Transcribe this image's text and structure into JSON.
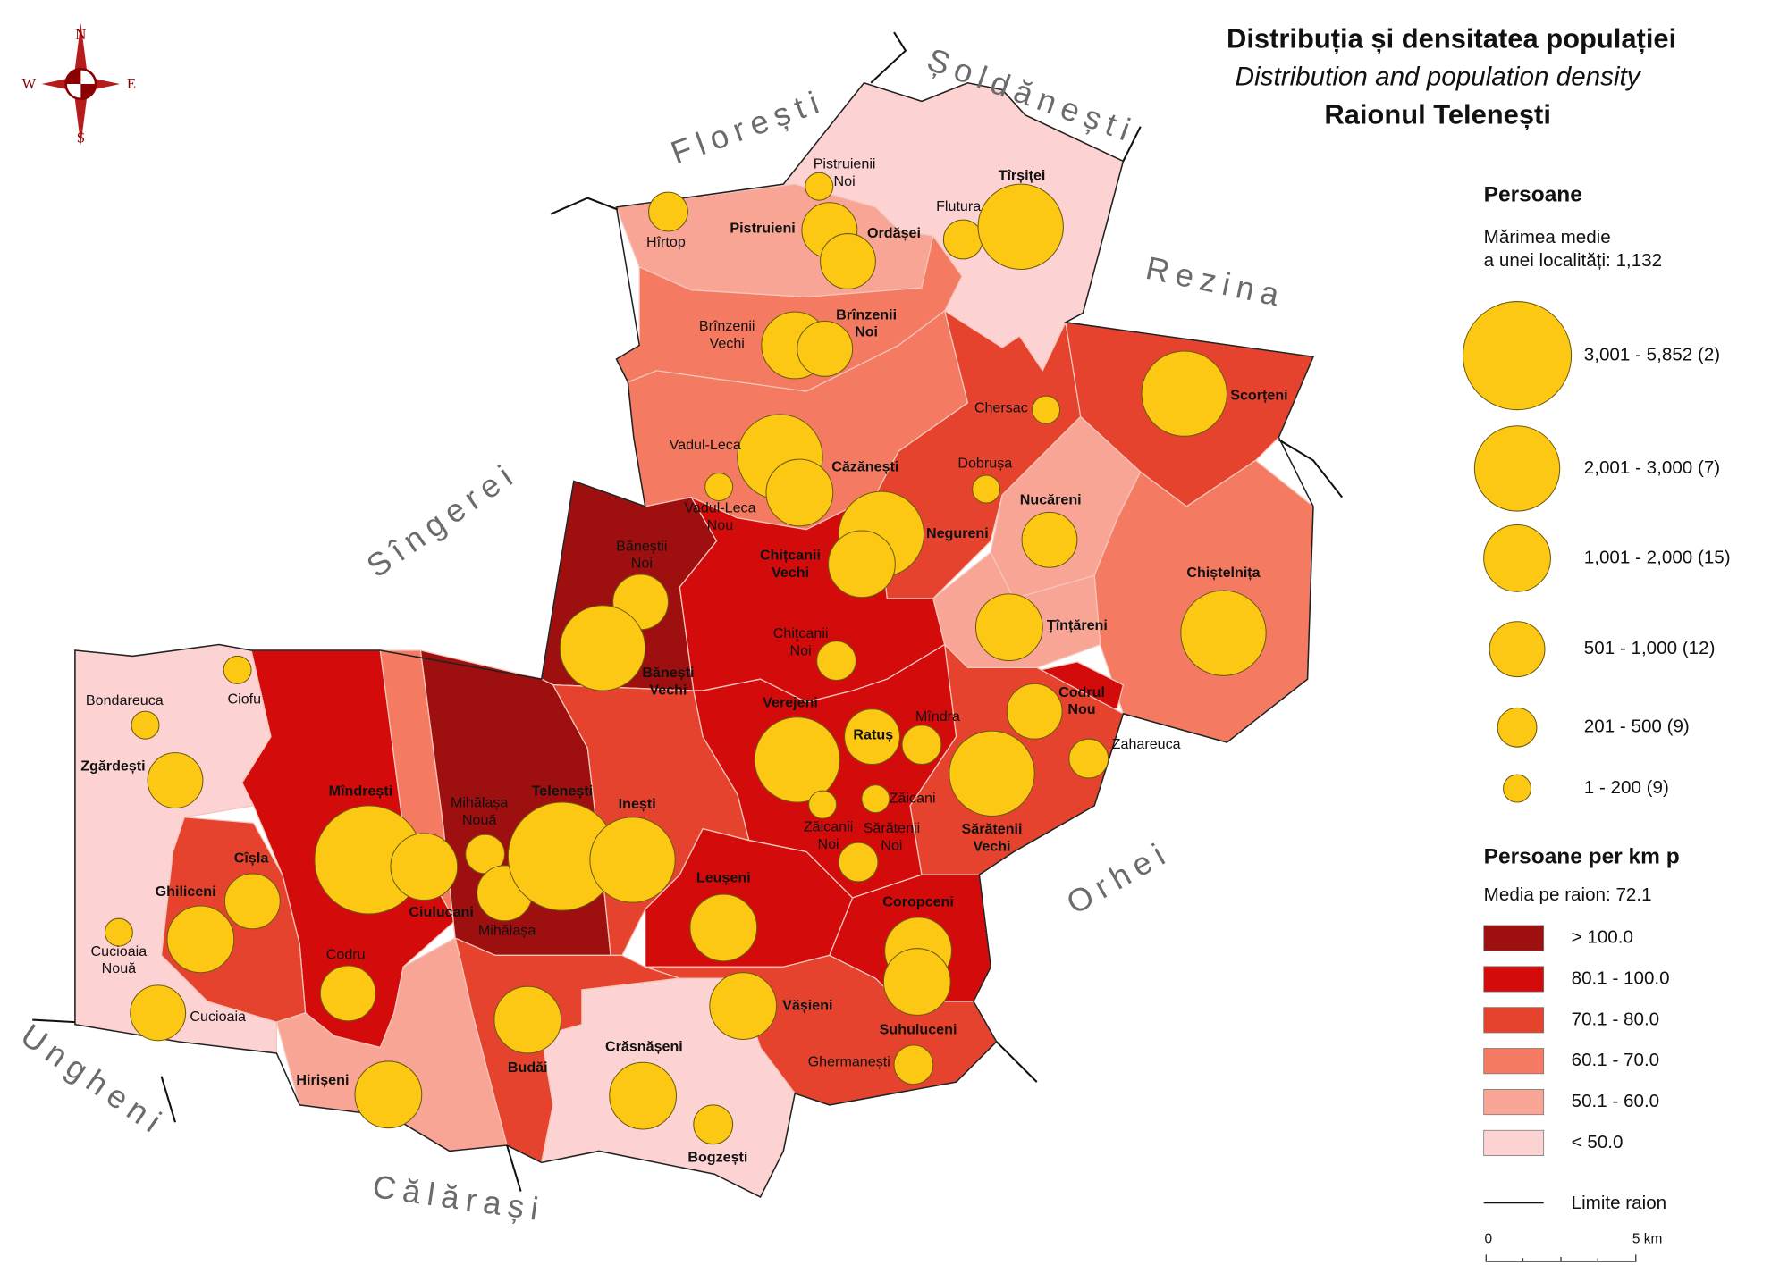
{
  "title": {
    "line1": "Distribuția și densitatea populației",
    "line2": "Distribution and population density",
    "line3": "Raionul Telenești"
  },
  "compass": {
    "n": "N",
    "e": "E",
    "s": "S",
    "w": "W"
  },
  "neighbors": [
    "Florești",
    "Șoldănești",
    "Rezina",
    "Sîngerei",
    "Orhei",
    "Ungheni",
    "Călărași"
  ],
  "localities": [
    [
      "Hîrtop"
    ],
    [
      "Pistruienii",
      "Noi"
    ],
    [
      "Pistruieni"
    ],
    [
      "Ordășei"
    ],
    [
      "Flutura"
    ],
    [
      "Tîrșiței"
    ],
    [
      "Brînzenii",
      "Vechi"
    ],
    [
      "Brînzenii",
      "Noi"
    ],
    [
      "Chersac"
    ],
    [
      "Scorțeni"
    ],
    [
      "Vadul-Leca"
    ],
    [
      "Căzănești"
    ],
    [
      "Vadul-Leca",
      "Nou"
    ],
    [
      "Dobrușa"
    ],
    [
      "Nucăreni"
    ],
    [
      "Negureni"
    ],
    [
      "Chițcanii",
      "Vechi"
    ],
    [
      "Chiștelnița"
    ],
    [
      "Băneștii",
      "Noi"
    ],
    [
      "Bănești",
      "Vechi"
    ],
    [
      "Chițcanii",
      "Noi"
    ],
    [
      "Țînțăreni"
    ],
    [
      "Ciofu"
    ],
    [
      "Bondareuca"
    ],
    [
      "Codrul",
      "Nou"
    ],
    [
      "Zgărdești"
    ],
    [
      "Verejeni"
    ],
    [
      "Ratuș"
    ],
    [
      "Mîndra"
    ],
    [
      "Zahareuca"
    ],
    [
      "Sărătenii",
      "Vechi"
    ],
    [
      "Zăicani"
    ],
    [
      "Zăicanii",
      "Noi"
    ],
    [
      "Sărătenii",
      "Noi"
    ],
    [
      "Mîndrești"
    ],
    [
      "Ciulucani"
    ],
    [
      "Mihălașa",
      "Nouă"
    ],
    [
      "Mihălașa"
    ],
    [
      "Telenești"
    ],
    [
      "Inești"
    ],
    [
      "Cîșla"
    ],
    [
      "Ghiliceni"
    ],
    [
      "Cucioaia",
      "Nouă"
    ],
    [
      "Cucioaia"
    ],
    [
      "Leușeni"
    ],
    [
      "Coropceni"
    ],
    [
      "Codru"
    ],
    [
      "Vășieni"
    ],
    [
      "Suhuluceni"
    ],
    [
      "Ghermanești"
    ],
    [
      "Budăi"
    ],
    [
      "Crăsnășeni"
    ],
    [
      "Hirișeni"
    ],
    [
      "Bogzești"
    ]
  ],
  "legend": {
    "persons": {
      "heading": "Persoane",
      "note": [
        "Mărimea medie",
        "a unei localități: 1,132"
      ],
      "classes": [
        "3,001 - 5,852 (2)",
        "2,001 - 3,000 (7)",
        "1,001 - 2,000 (15)",
        "501 - 1,000 (12)",
        "201 - 500 (9)",
        "1 - 200 (9)"
      ]
    },
    "density": {
      "heading": "Persoane per km p",
      "note": "Media pe raion: 72.1",
      "classes": [
        {
          "label": "> 100.0",
          "color": "#9e0f0f"
        },
        {
          "label": "80.1 - 100.0",
          "color": "#d40b0b"
        },
        {
          "label": "70.1 - 80.0",
          "color": "#e5432e"
        },
        {
          "label": "60.1 - 70.0",
          "color": "#f47a62"
        },
        {
          "label": "50.1 - 60.0",
          "color": "#f9a596"
        },
        {
          "label": "< 50.0",
          "color": "#fdd2d2"
        }
      ]
    },
    "boundary": "Limite raion",
    "scale": [
      "0",
      "5 km"
    ]
  }
}
